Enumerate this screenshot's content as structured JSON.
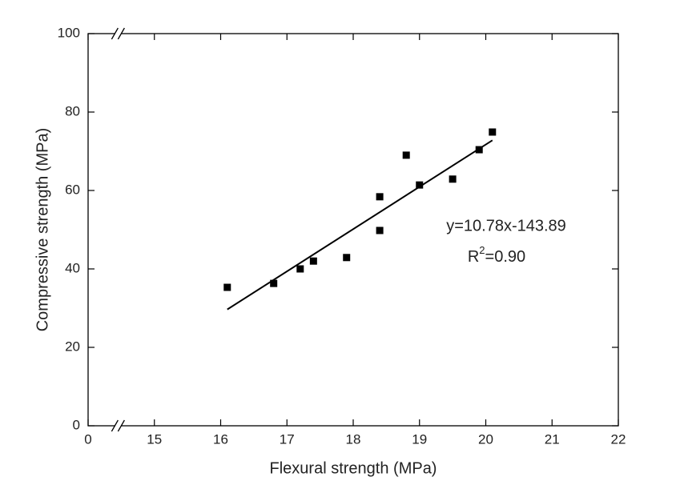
{
  "chart_data": {
    "type": "scatter",
    "x_label": "Flexural strength (MPa)",
    "y_label": "Compressive strength (MPa)",
    "x": [
      16.1,
      16.8,
      17.2,
      17.4,
      17.9,
      18.4,
      18.4,
      18.8,
      19.0,
      19.5,
      19.9,
      20.1
    ],
    "values": [
      35.3,
      36.3,
      40.0,
      42.0,
      42.9,
      58.4,
      49.8,
      69.0,
      61.4,
      62.9,
      70.4,
      74.9
    ],
    "color": "#000000",
    "xlim": [
      0,
      22
    ],
    "xticks": [
      0,
      15,
      16,
      17,
      18,
      19,
      20,
      21,
      22
    ],
    "xbreak": true,
    "ylim": [
      0,
      100
    ],
    "yticks": [
      0,
      20,
      40,
      60,
      80,
      100
    ],
    "fit": {
      "slope": 10.78,
      "intercept": -143.89,
      "xrange": [
        16.1,
        20.1
      ],
      "equation": "y=10.78x-143.89",
      "r2_prefix": "R",
      "r2_sup": "2",
      "r2_value": "=0.90"
    }
  }
}
